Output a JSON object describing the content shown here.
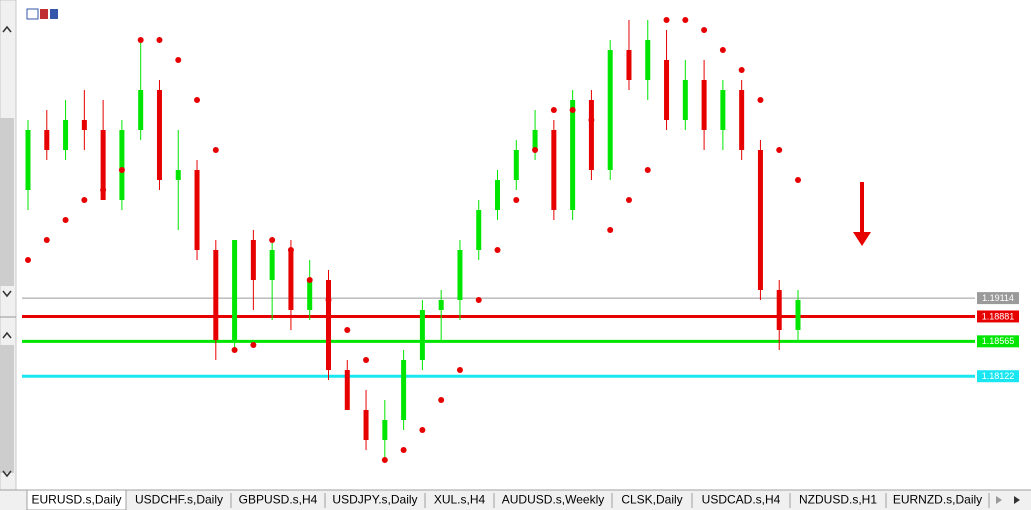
{
  "chart_data": {
    "type": "candlestick",
    "up_color": "#00e600",
    "down_color": "#e60000",
    "sar_color": "#e60000",
    "ylim": [
      1.16677,
      1.229
    ],
    "open": [
      1.20487,
      1.21249,
      1.20995,
      1.21376,
      1.21249,
      1.2036,
      1.21249,
      1.21757,
      1.20614,
      1.20741,
      1.19725,
      1.18582,
      1.19852,
      1.19344,
      1.19725,
      1.18963,
      1.19344,
      1.18201,
      1.17693,
      1.17312,
      1.17566,
      1.18328,
      1.18963,
      1.1909,
      1.19725,
      1.20233,
      1.20614,
      1.20995,
      1.21249,
      1.20233,
      1.2163,
      1.20741,
      1.22265,
      1.21884,
      1.22138,
      1.21376,
      1.21884,
      1.21249,
      1.21757,
      1.20995,
      1.19217,
      1.18709
    ],
    "high": [
      1.21376,
      1.21503,
      1.2163,
      1.21757,
      1.2163,
      1.21376,
      1.22392,
      1.21884,
      1.21249,
      1.20868,
      1.19852,
      1.19852,
      1.19979,
      1.19852,
      1.19852,
      1.19598,
      1.19471,
      1.18328,
      1.17947,
      1.1782,
      1.18455,
      1.1909,
      1.19217,
      1.19852,
      1.2036,
      1.20741,
      1.21122,
      1.21503,
      1.21376,
      1.21757,
      1.21757,
      1.22392,
      1.22646,
      1.22646,
      1.22519,
      1.22138,
      1.22138,
      1.21884,
      1.21884,
      1.21122,
      1.19344,
      1.19217
    ],
    "low": [
      1.20233,
      1.20868,
      1.20868,
      1.20995,
      1.2036,
      1.20233,
      1.21122,
      1.20487,
      1.19979,
      1.19598,
      1.18328,
      1.18455,
      1.18963,
      1.18836,
      1.18709,
      1.18836,
      1.18074,
      1.17693,
      1.17185,
      1.17058,
      1.17439,
      1.18201,
      1.18582,
      1.18836,
      1.19598,
      1.20106,
      1.20487,
      1.20868,
      1.20106,
      1.20106,
      1.20614,
      1.20614,
      1.21757,
      1.2163,
      1.21249,
      1.21249,
      1.20995,
      1.20995,
      1.20868,
      1.1909,
      1.18455,
      1.18582
    ],
    "close": [
      1.21249,
      1.20995,
      1.21376,
      1.21249,
      1.2036,
      1.21249,
      1.21757,
      1.20614,
      1.20741,
      1.19725,
      1.18582,
      1.19852,
      1.19344,
      1.19725,
      1.18963,
      1.19344,
      1.18201,
      1.17693,
      1.17312,
      1.17566,
      1.18328,
      1.18963,
      1.1909,
      1.19725,
      1.20233,
      1.20614,
      1.20995,
      1.21249,
      1.20233,
      1.2163,
      1.20741,
      1.22265,
      1.21884,
      1.22392,
      1.21376,
      1.21884,
      1.21249,
      1.21757,
      1.20995,
      1.19217,
      1.18709,
      1.1909
    ],
    "sar": [
      1.19598,
      1.19852,
      1.20106,
      1.2036,
      1.20487,
      1.20741,
      1.22392,
      1.22392,
      1.22138,
      1.2163,
      1.20995,
      1.18455,
      1.18519,
      1.19852,
      1.19725,
      1.19344,
      1.1909,
      1.18709,
      1.18328,
      1.17058,
      1.17185,
      1.17439,
      1.1782,
      1.18201,
      1.1909,
      1.19725,
      1.2036,
      1.20995,
      1.21503,
      1.21503,
      1.21376,
      1.19979,
      1.2036,
      1.20741,
      1.22646,
      1.22646,
      1.22519,
      1.22265,
      1.22011,
      1.2163,
      1.20995,
      1.20614
    ],
    "levels": [
      {
        "value": 1.19114,
        "color": "#9a9a9a"
      },
      {
        "value": 1.18881,
        "color": "#e60000"
      },
      {
        "value": 1.18565,
        "color": "#00e600"
      },
      {
        "value": 1.18122,
        "color": "#19e6f0"
      }
    ]
  },
  "tabs": [
    "EURUSD.s,Daily",
    "USDCHF.s,Daily",
    "GBPUSD.s,H4",
    "USDJPY.s,Daily",
    "XUL.s,H4",
    "AUDUSD.s,Weekly",
    "CLSK,Daily",
    "USDCAD.s,H4",
    "NZDUSD.s,H1",
    "EURNZD.s,Daily"
  ]
}
